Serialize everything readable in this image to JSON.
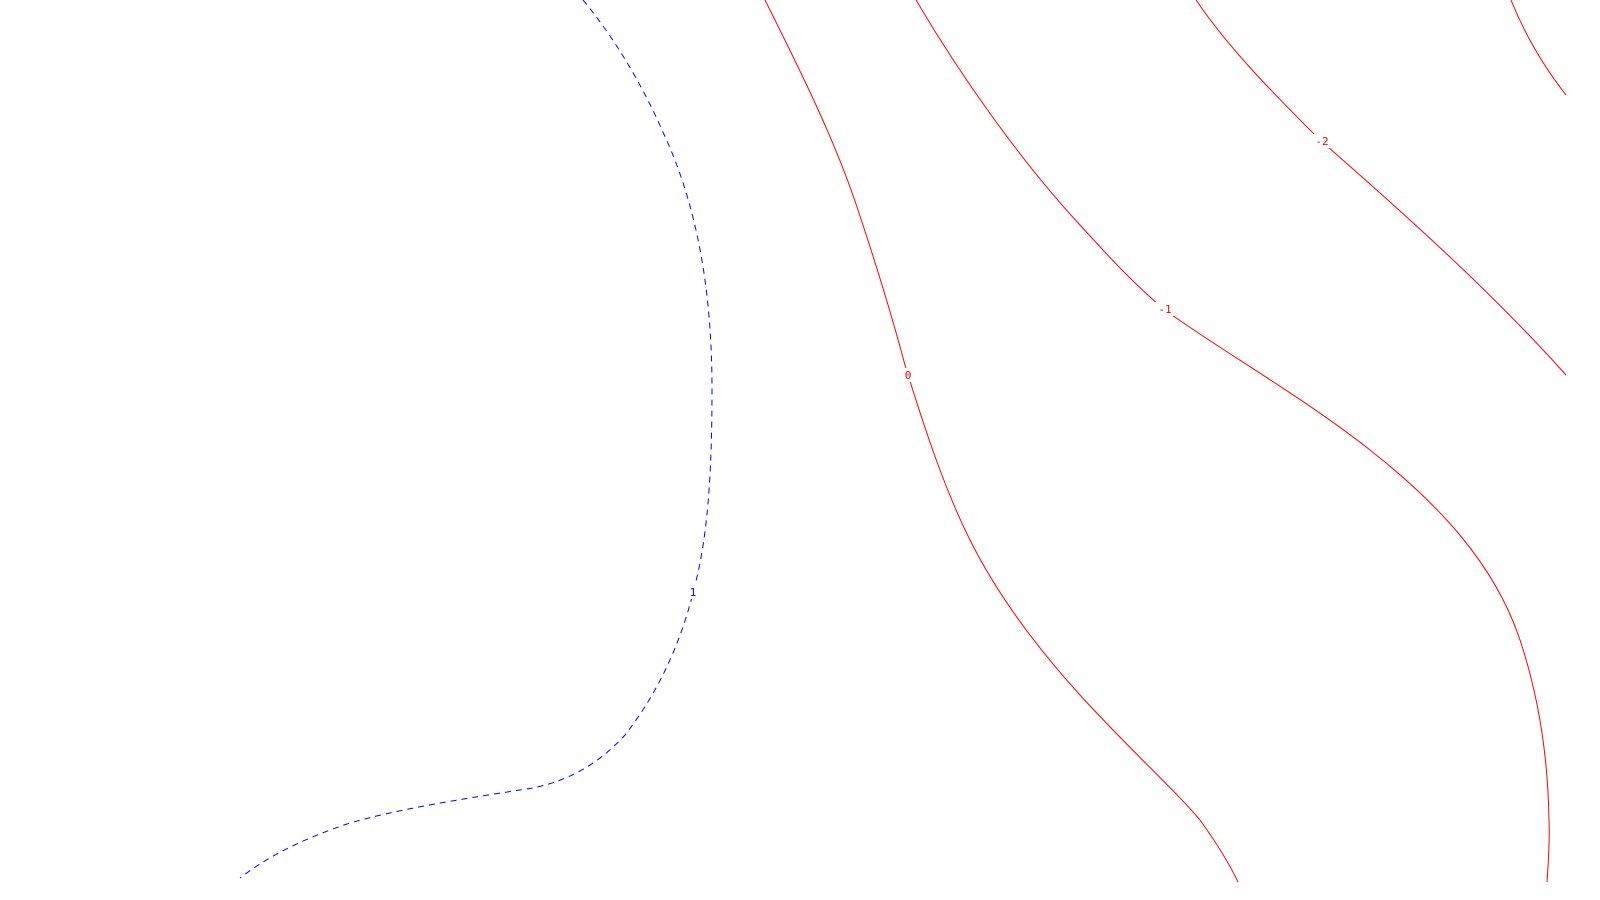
{
  "map": {
    "background_color": "#ffffff",
    "contours": [
      {
        "name": "contour-1",
        "value": "1",
        "color": "#0000ff",
        "style": "dashed"
      },
      {
        "name": "contour-0",
        "value": "0",
        "color": "#ff0000",
        "style": "solid"
      },
      {
        "name": "contour-neg1",
        "value": "-1",
        "color": "#ff0000",
        "style": "solid"
      },
      {
        "name": "contour-neg2",
        "value": "-2",
        "color": "#ff0000",
        "style": "solid"
      },
      {
        "name": "contour-neg3",
        "value": "",
        "color": "#ff0000",
        "style": "solid"
      }
    ]
  }
}
